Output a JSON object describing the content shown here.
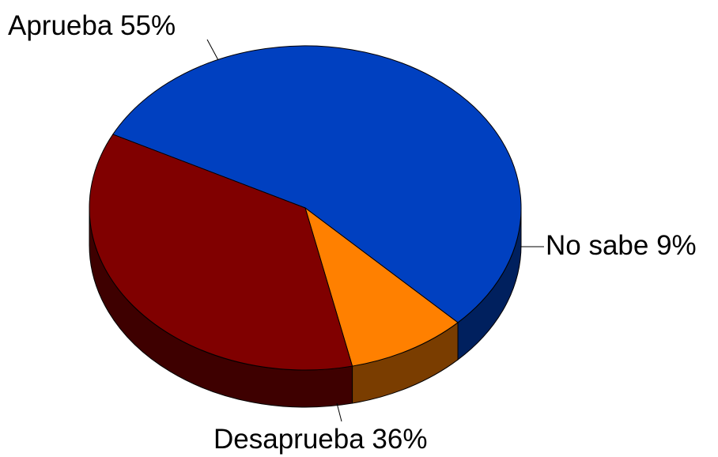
{
  "chart_data": {
    "type": "pie",
    "style": "3d",
    "title": "",
    "slices": [
      {
        "label": "Aprueba",
        "value": 55,
        "display": "Aprueba  55%",
        "color": "#0040C0",
        "side_color": "#00205E"
      },
      {
        "label": "No sabe",
        "value": 9,
        "display": "No sabe  9%",
        "color": "#FF8000",
        "side_color": "#7A3D00"
      },
      {
        "label": "Desaprueba",
        "value": 36,
        "display": "Desaprueba  36%",
        "color": "#800000",
        "side_color": "#3E0000"
      }
    ]
  }
}
